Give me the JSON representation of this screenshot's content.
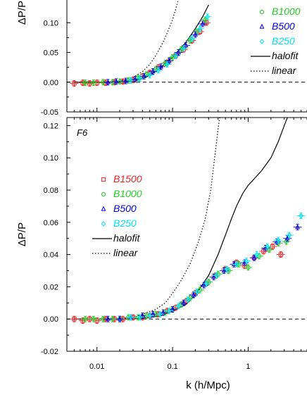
{
  "chart_data": [
    {
      "type": "scatter",
      "panel_label": "",
      "ylabel": "ΔP/P",
      "xlabel": "",
      "x_scale": "log",
      "xlim": [
        0.004,
        6
      ],
      "ylim": [
        -0.05,
        0.15
      ],
      "y_ticks": [
        "-0.05",
        "0.00",
        "0.05",
        "0.10"
      ],
      "x_tick_labels": [],
      "legend": {
        "placement": "right (partially cut off)",
        "entries": [
          {
            "label": "B1000",
            "color": "#22cc22",
            "marker": "circle"
          },
          {
            "label": "B500",
            "color": "#0000dd",
            "marker": "triangle"
          },
          {
            "label": "B250",
            "color": "#00e5ee",
            "marker": "diamond"
          },
          {
            "label": "halofit",
            "color": "#000000",
            "line": "solid"
          },
          {
            "label": "linear",
            "color": "#000000",
            "line": "dotted"
          }
        ]
      },
      "series": [
        {
          "name": "B1500",
          "color": "#ee2222",
          "marker": "square",
          "points": [
            [
              0.005,
              -0.002
            ],
            [
              0.0065,
              -0.001
            ],
            [
              0.008,
              -0.002
            ],
            [
              0.01,
              -0.001
            ],
            [
              0.013,
              -0.001
            ],
            [
              0.017,
              0.0
            ],
            [
              0.022,
              0.001
            ],
            [
              0.03,
              0.004
            ],
            [
              0.04,
              0.01
            ],
            [
              0.05,
              0.016
            ],
            [
              0.065,
              0.025
            ],
            [
              0.085,
              0.033
            ],
            [
              0.11,
              0.045
            ],
            [
              0.14,
              0.055
            ],
            [
              0.18,
              0.07
            ],
            [
              0.23,
              0.085
            ],
            [
              0.28,
              0.1
            ]
          ]
        },
        {
          "name": "B1000",
          "color": "#22cc22",
          "marker": "circle",
          "points": [
            [
              0.007,
              -0.001
            ],
            [
              0.009,
              -0.001
            ],
            [
              0.012,
              0.0
            ],
            [
              0.016,
              0.0
            ],
            [
              0.02,
              0.001
            ],
            [
              0.026,
              0.003
            ],
            [
              0.035,
              0.007
            ],
            [
              0.045,
              0.013
            ],
            [
              0.06,
              0.022
            ],
            [
              0.08,
              0.032
            ],
            [
              0.1,
              0.042
            ],
            [
              0.13,
              0.055
            ],
            [
              0.17,
              0.07
            ],
            [
              0.21,
              0.085
            ],
            [
              0.27,
              0.105
            ]
          ]
        },
        {
          "name": "B500",
          "color": "#0000dd",
          "marker": "triangle",
          "points": [
            [
              0.014,
              0.0
            ],
            [
              0.018,
              0.001
            ],
            [
              0.024,
              0.002
            ],
            [
              0.032,
              0.005
            ],
            [
              0.042,
              0.01
            ],
            [
              0.055,
              0.018
            ],
            [
              0.07,
              0.026
            ],
            [
              0.09,
              0.036
            ],
            [
              0.12,
              0.05
            ],
            [
              0.15,
              0.062
            ],
            [
              0.2,
              0.08
            ],
            [
              0.25,
              0.098
            ]
          ]
        },
        {
          "name": "B250",
          "color": "#00e5ee",
          "marker": "diamond",
          "points": [
            [
              0.028,
              0.003
            ],
            [
              0.037,
              0.006
            ],
            [
              0.05,
              0.012
            ],
            [
              0.065,
              0.02
            ],
            [
              0.085,
              0.03
            ],
            [
              0.11,
              0.044
            ],
            [
              0.14,
              0.057
            ],
            [
              0.18,
              0.073
            ],
            [
              0.23,
              0.09
            ],
            [
              0.29,
              0.11
            ]
          ]
        }
      ],
      "curves": [
        {
          "name": "halofit",
          "style": "solid",
          "points": [
            [
              0.005,
              0.0
            ],
            [
              0.02,
              0.0
            ],
            [
              0.03,
              0.002
            ],
            [
              0.04,
              0.006
            ],
            [
              0.05,
              0.012
            ],
            [
              0.07,
              0.025
            ],
            [
              0.1,
              0.042
            ],
            [
              0.15,
              0.067
            ],
            [
              0.2,
              0.09
            ],
            [
              0.25,
              0.11
            ],
            [
              0.3,
              0.13
            ]
          ]
        },
        {
          "name": "linear",
          "style": "dotted",
          "points": [
            [
              0.005,
              0.0
            ],
            [
              0.015,
              0.0
            ],
            [
              0.02,
              0.002
            ],
            [
              0.03,
              0.008
            ],
            [
              0.04,
              0.018
            ],
            [
              0.05,
              0.03
            ],
            [
              0.06,
              0.045
            ],
            [
              0.07,
              0.06
            ],
            [
              0.08,
              0.075
            ],
            [
              0.1,
              0.105
            ],
            [
              0.12,
              0.14
            ],
            [
              0.13,
              0.16
            ]
          ]
        }
      ],
      "reference_line": {
        "y": 0,
        "style": "dashed"
      }
    },
    {
      "type": "scatter",
      "panel_label": "F6",
      "ylabel": "ΔP/P",
      "xlabel": "k (h/Mpc)",
      "x_scale": "log",
      "xlim": [
        0.004,
        6
      ],
      "ylim": [
        -0.02,
        0.125
      ],
      "y_ticks": [
        "-0.02",
        "0.00",
        "0.02",
        "0.04",
        "0.06",
        "0.08",
        "0.10",
        "0.12"
      ],
      "x_tick_labels": [
        "0.01",
        "0.1",
        "1"
      ],
      "legend": {
        "placement": "upper-left",
        "entries": [
          {
            "label": "B1500",
            "color": "#ee2222",
            "marker": "square"
          },
          {
            "label": "B1000",
            "color": "#22cc22",
            "marker": "circle"
          },
          {
            "label": "B500",
            "color": "#0000dd",
            "marker": "triangle"
          },
          {
            "label": "B250",
            "color": "#00e5ee",
            "marker": "diamond"
          },
          {
            "label": "halofit",
            "color": "#000000",
            "line": "solid"
          },
          {
            "label": "linear",
            "color": "#000000",
            "line": "dotted"
          }
        ]
      },
      "series": [
        {
          "name": "B1500",
          "color": "#ee2222",
          "marker": "square",
          "points": [
            [
              0.005,
              0.0
            ],
            [
              0.0065,
              -0.001
            ],
            [
              0.008,
              0.0
            ],
            [
              0.01,
              -0.001
            ],
            [
              0.013,
              0.0
            ],
            [
              0.017,
              0.0
            ],
            [
              0.022,
              0.0
            ],
            [
              0.03,
              0.001
            ],
            [
              0.04,
              0.001
            ],
            [
              0.05,
              0.002
            ],
            [
              0.065,
              0.003
            ],
            [
              0.085,
              0.005
            ],
            [
              0.11,
              0.007
            ],
            [
              0.15,
              0.011
            ],
            [
              0.2,
              0.016
            ],
            [
              0.28,
              0.022
            ],
            [
              0.37,
              0.027
            ],
            [
              0.5,
              0.031
            ],
            [
              0.7,
              0.035
            ],
            [
              0.9,
              0.033
            ],
            [
              1.2,
              0.038
            ],
            [
              1.6,
              0.042
            ],
            [
              2.1,
              0.045
            ],
            [
              2.7,
              0.04
            ]
          ]
        },
        {
          "name": "B1000",
          "color": "#22cc22",
          "marker": "circle",
          "points": [
            [
              0.007,
              0.0
            ],
            [
              0.009,
              0.0
            ],
            [
              0.012,
              0.0
            ],
            [
              0.016,
              0.0
            ],
            [
              0.02,
              0.0
            ],
            [
              0.026,
              0.001
            ],
            [
              0.035,
              0.001
            ],
            [
              0.045,
              0.002
            ],
            [
              0.06,
              0.003
            ],
            [
              0.08,
              0.004
            ],
            [
              0.1,
              0.006
            ],
            [
              0.13,
              0.009
            ],
            [
              0.17,
              0.013
            ],
            [
              0.23,
              0.018
            ],
            [
              0.3,
              0.023
            ],
            [
              0.4,
              0.028
            ],
            [
              0.55,
              0.03
            ],
            [
              0.75,
              0.034
            ],
            [
              1.0,
              0.032
            ],
            [
              1.4,
              0.039
            ],
            [
              1.9,
              0.043
            ],
            [
              2.5,
              0.047
            ],
            [
              3.2,
              0.048
            ]
          ]
        },
        {
          "name": "B500",
          "color": "#0000dd",
          "marker": "triangle",
          "points": [
            [
              0.014,
              0.0
            ],
            [
              0.02,
              0.0
            ],
            [
              0.028,
              0.001
            ],
            [
              0.04,
              0.002
            ],
            [
              0.055,
              0.003
            ],
            [
              0.075,
              0.004
            ],
            [
              0.1,
              0.006
            ],
            [
              0.14,
              0.01
            ],
            [
              0.19,
              0.015
            ],
            [
              0.26,
              0.021
            ],
            [
              0.35,
              0.026
            ],
            [
              0.48,
              0.03
            ],
            [
              0.65,
              0.034
            ],
            [
              0.9,
              0.035
            ],
            [
              1.2,
              0.038
            ],
            [
              1.7,
              0.044
            ],
            [
              2.4,
              0.048
            ],
            [
              3.3,
              0.05
            ],
            [
              4.5,
              0.057
            ]
          ]
        },
        {
          "name": "B250",
          "color": "#00e5ee",
          "marker": "diamond",
          "points": [
            [
              0.028,
              0.001
            ],
            [
              0.037,
              0.001
            ],
            [
              0.05,
              0.002
            ],
            [
              0.068,
              0.003
            ],
            [
              0.09,
              0.005
            ],
            [
              0.12,
              0.008
            ],
            [
              0.16,
              0.012
            ],
            [
              0.21,
              0.017
            ],
            [
              0.28,
              0.022
            ],
            [
              0.38,
              0.027
            ],
            [
              0.52,
              0.031
            ],
            [
              0.7,
              0.034
            ],
            [
              0.95,
              0.036
            ],
            [
              1.3,
              0.04
            ],
            [
              1.8,
              0.045
            ],
            [
              2.5,
              0.049
            ],
            [
              3.5,
              0.052
            ],
            [
              5.0,
              0.064
            ]
          ]
        }
      ],
      "curves": [
        {
          "name": "halofit",
          "style": "solid",
          "points": [
            [
              0.005,
              0.0
            ],
            [
              0.03,
              0.0
            ],
            [
              0.05,
              0.001
            ],
            [
              0.07,
              0.002
            ],
            [
              0.1,
              0.005
            ],
            [
              0.15,
              0.009
            ],
            [
              0.2,
              0.015
            ],
            [
              0.3,
              0.027
            ],
            [
              0.4,
              0.04
            ],
            [
              0.5,
              0.052
            ],
            [
              0.6,
              0.062
            ],
            [
              0.7,
              0.07
            ],
            [
              0.85,
              0.078
            ],
            [
              1.0,
              0.083
            ],
            [
              1.2,
              0.087
            ],
            [
              1.5,
              0.092
            ],
            [
              2.0,
              0.1
            ],
            [
              2.5,
              0.11
            ],
            [
              3.0,
              0.12
            ],
            [
              3.3,
              0.125
            ]
          ]
        },
        {
          "name": "linear",
          "style": "dotted",
          "points": [
            [
              0.005,
              0.0
            ],
            [
              0.02,
              0.0
            ],
            [
              0.03,
              0.001
            ],
            [
              0.04,
              0.003
            ],
            [
              0.06,
              0.006
            ],
            [
              0.08,
              0.01
            ],
            [
              0.1,
              0.016
            ],
            [
              0.13,
              0.024
            ],
            [
              0.17,
              0.034
            ],
            [
              0.22,
              0.048
            ],
            [
              0.27,
              0.062
            ],
            [
              0.32,
              0.08
            ],
            [
              0.36,
              0.1
            ],
            [
              0.4,
              0.118
            ],
            [
              0.42,
              0.125
            ]
          ]
        }
      ],
      "reference_line": {
        "y": 0,
        "style": "dashed"
      }
    }
  ]
}
